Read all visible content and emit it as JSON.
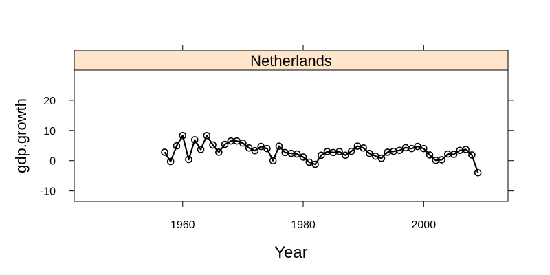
{
  "chart_data": {
    "type": "line",
    "panel_title": "Netherlands",
    "xlabel": "Year",
    "ylabel": "gdp.growth",
    "xlim": [
      1942,
      2014
    ],
    "ylim": [
      -13.5,
      30
    ],
    "xticks": [
      1960,
      1980,
      2000
    ],
    "yticks": [
      -10,
      0,
      10,
      20
    ],
    "xtick_labels": [
      "1960",
      "1980",
      "2000"
    ],
    "ytick_labels": [
      "-10",
      "0",
      "10",
      "20"
    ],
    "grid": false,
    "series": [
      {
        "x": [
          1957,
          1958,
          1959,
          1960,
          1961,
          1962,
          1963,
          1964,
          1965,
          1966,
          1967,
          1968,
          1969,
          1970,
          1971,
          1972,
          1973,
          1974,
          1975,
          1976,
          1977,
          1978,
          1979,
          1980,
          1981,
          1982,
          1983,
          1984,
          1985,
          1986,
          1987,
          1988,
          1989,
          1990,
          1991,
          1992,
          1993,
          1994,
          1995,
          1996,
          1997,
          1998,
          1999,
          2000,
          2001,
          2002,
          2003,
          2004,
          2005,
          2006,
          2007,
          2008,
          2009
        ],
        "values": [
          2.8,
          -0.3,
          4.9,
          8.3,
          0.4,
          6.9,
          3.7,
          8.3,
          5.2,
          2.8,
          5.4,
          6.5,
          6.5,
          5.8,
          4.2,
          3.3,
          4.7,
          4.0,
          0.0,
          4.8,
          2.7,
          2.4,
          2.2,
          1.2,
          -0.5,
          -1.2,
          1.8,
          3.0,
          2.7,
          3.0,
          1.8,
          3.1,
          4.8,
          4.2,
          2.4,
          1.5,
          0.8,
          2.8,
          3.1,
          3.4,
          4.3,
          4.0,
          4.7,
          4.0,
          1.9,
          0.1,
          0.3,
          2.2,
          2.1,
          3.4,
          3.7,
          1.9,
          -4.0
        ]
      }
    ]
  }
}
